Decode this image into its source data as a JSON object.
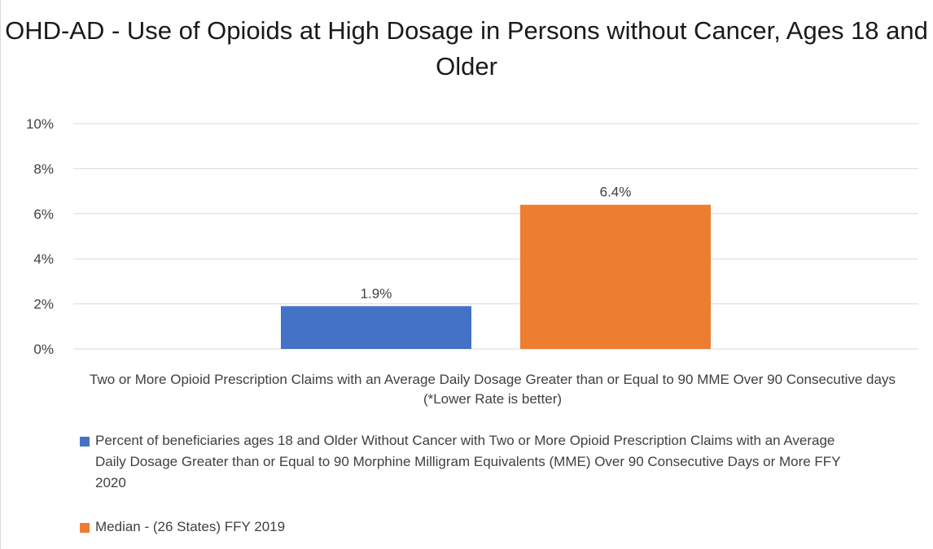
{
  "chart_data": {
    "type": "bar",
    "title": "OHD-AD - Use of Opioids at High Dosage in Persons without Cancer, Ages 18 and Older",
    "categories": [
      "Two or More Opioid Prescription Claims with an Average Daily Dosage Greater than or Equal to 90 MME Over 90 Consecutive days (*Lower Rate is better)"
    ],
    "series": [
      {
        "name": "Percent of beneficiaries ages 18 and Older Without Cancer with Two or More Opioid Prescription Claims with an Average Daily Dosage Greater than or Equal to 90 Morphine Milligram Equivalents (MME) Over 90 Consecutive Days or More FFY 2020",
        "values": [
          1.9
        ],
        "label": "1.9%",
        "color": "#4472c4"
      },
      {
        "name": "Median - (26 States) FFY 2019",
        "values": [
          6.4
        ],
        "label": "6.4%",
        "color": "#ed7d31"
      }
    ],
    "ylim": [
      0,
      10
    ],
    "yticks": [
      "0%",
      "2%",
      "4%",
      "6%",
      "8%",
      "10%"
    ],
    "grid": true,
    "legend": "bottom"
  }
}
